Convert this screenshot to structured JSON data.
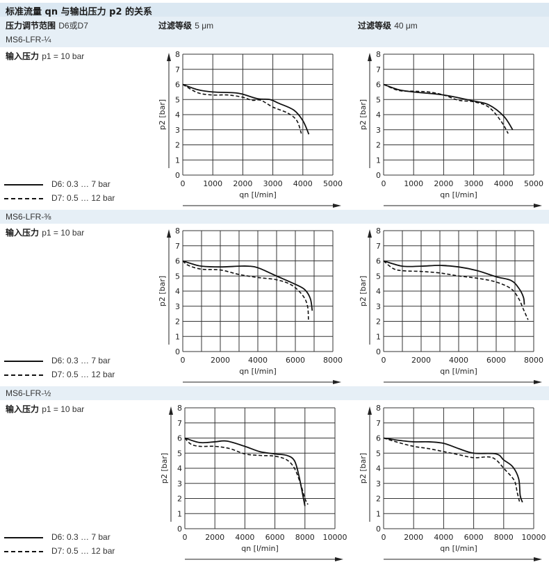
{
  "title": "标准流量 qn 与输出压力 p2 的关系",
  "header": {
    "range_label": "压力调节范围",
    "range_value": "D6或D7",
    "filter_label": "过滤等级",
    "filter_5": "5 μm",
    "filter_40": "过滤等级",
    "filter_40_value": "40 μm"
  },
  "input_label": "输入压力",
  "input_value": "p1 = 10 bar",
  "legend": {
    "d6": "D6: 0.3 … 7 bar",
    "d7": "D7: 0.5 … 12 bar"
  },
  "sections": [
    {
      "model": "MS6-LFR-¼"
    },
    {
      "model": "MS6-LFR-⅜"
    },
    {
      "model": "MS6-LFR-½"
    }
  ],
  "chart_data": [
    {
      "type": "line",
      "model": "MS6-LFR-¼",
      "filter": "5 μm",
      "xlabel": "qn [l/min]",
      "ylabel": "p2 [bar]",
      "xlim": [
        0,
        5000
      ],
      "ylim": [
        0,
        8
      ],
      "xgrid": 1000,
      "xticks": [
        0,
        1000,
        2000,
        3000,
        4000,
        5000
      ],
      "yticks": [
        0,
        1,
        2,
        3,
        4,
        5,
        6,
        7,
        8
      ],
      "grid": true,
      "series": [
        {
          "name": "D6: 0.3 … 7 bar",
          "style": "solid",
          "points": [
            [
              0,
              6
            ],
            [
              500,
              5.65
            ],
            [
              1000,
              5.5
            ],
            [
              1700,
              5.45
            ],
            [
              2000,
              5.35
            ],
            [
              2500,
              5.05
            ],
            [
              2900,
              5.0
            ],
            [
              3200,
              4.75
            ],
            [
              3700,
              4.3
            ],
            [
              4000,
              3.6
            ],
            [
              4200,
              2.7
            ]
          ]
        },
        {
          "name": "D7: 0.5 … 12 bar",
          "style": "dashed",
          "points": [
            [
              0,
              6
            ],
            [
              500,
              5.45
            ],
            [
              1000,
              5.3
            ],
            [
              1500,
              5.3
            ],
            [
              2000,
              5.15
            ],
            [
              2300,
              4.95
            ],
            [
              2600,
              4.95
            ],
            [
              3000,
              4.5
            ],
            [
              3500,
              4.1
            ],
            [
              3800,
              3.6
            ],
            [
              3950,
              2.75
            ]
          ]
        }
      ]
    },
    {
      "type": "line",
      "model": "MS6-LFR-¼",
      "filter": "40 μm",
      "xlabel": "qn [l/min]",
      "ylabel": "p2 [bar]",
      "xlim": [
        0,
        5000
      ],
      "ylim": [
        0,
        8
      ],
      "xgrid": 1000,
      "xticks": [
        0,
        1000,
        2000,
        3000,
        4000,
        5000
      ],
      "yticks": [
        0,
        1,
        2,
        3,
        4,
        5,
        6,
        7,
        8
      ],
      "grid": true,
      "series": [
        {
          "name": "D6: 0.3 … 7 bar",
          "style": "solid",
          "points": [
            [
              0,
              6
            ],
            [
              500,
              5.65
            ],
            [
              1000,
              5.5
            ],
            [
              2000,
              5.3
            ],
            [
              3000,
              4.9
            ],
            [
              3500,
              4.65
            ],
            [
              4000,
              3.9
            ],
            [
              4300,
              3.0
            ]
          ]
        },
        {
          "name": "D7: 0.5 … 12 bar",
          "style": "dashed",
          "points": [
            [
              0,
              6
            ],
            [
              500,
              5.6
            ],
            [
              1000,
              5.55
            ],
            [
              1500,
              5.5
            ],
            [
              2000,
              5.3
            ],
            [
              2500,
              4.95
            ],
            [
              3000,
              4.85
            ],
            [
              3500,
              4.5
            ],
            [
              3900,
              3.6
            ],
            [
              4150,
              2.75
            ]
          ]
        }
      ]
    },
    {
      "type": "line",
      "model": "MS6-LFR-⅜",
      "filter": "5 μm",
      "xlabel": "qn [l/min]",
      "ylabel": "p2 [bar]",
      "xlim": [
        0,
        8000
      ],
      "ylim": [
        0,
        8
      ],
      "xgrid": 1000,
      "xticks": [
        0,
        2000,
        4000,
        6000,
        8000
      ],
      "yticks": [
        0,
        1,
        2,
        3,
        4,
        5,
        6,
        7,
        8
      ],
      "grid": true,
      "series": [
        {
          "name": "D6: 0.3 … 7 bar",
          "style": "solid",
          "points": [
            [
              0,
              6
            ],
            [
              500,
              5.8
            ],
            [
              1000,
              5.65
            ],
            [
              2000,
              5.6
            ],
            [
              3000,
              5.65
            ],
            [
              3500,
              5.65
            ],
            [
              4000,
              5.55
            ],
            [
              5000,
              5.0
            ],
            [
              6000,
              4.45
            ],
            [
              6500,
              4.1
            ],
            [
              6800,
              3.5
            ],
            [
              6900,
              2.7
            ]
          ]
        },
        {
          "name": "D7: 0.5 … 12 bar",
          "style": "dashed",
          "points": [
            [
              0,
              6
            ],
            [
              300,
              5.7
            ],
            [
              1000,
              5.45
            ],
            [
              2000,
              5.4
            ],
            [
              3000,
              5.1
            ],
            [
              4000,
              4.9
            ],
            [
              5000,
              4.75
            ],
            [
              5800,
              4.4
            ],
            [
              6400,
              3.7
            ],
            [
              6650,
              3.0
            ],
            [
              6700,
              2.0
            ]
          ]
        }
      ]
    },
    {
      "type": "line",
      "model": "MS6-LFR-⅜",
      "filter": "40 μm",
      "xlabel": "qn [l/min]",
      "ylabel": "p2 [bar]",
      "xlim": [
        0,
        8000
      ],
      "ylim": [
        0,
        8
      ],
      "xgrid": 1000,
      "xticks": [
        0,
        2000,
        4000,
        6000,
        8000
      ],
      "yticks": [
        0,
        1,
        2,
        3,
        4,
        5,
        6,
        7,
        8
      ],
      "grid": true,
      "series": [
        {
          "name": "D6: 0.3 … 7 bar",
          "style": "solid",
          "points": [
            [
              0,
              6
            ],
            [
              1000,
              5.65
            ],
            [
              2000,
              5.65
            ],
            [
              3000,
              5.7
            ],
            [
              4000,
              5.6
            ],
            [
              5000,
              5.35
            ],
            [
              6000,
              4.95
            ],
            [
              6800,
              4.7
            ],
            [
              7200,
              4.2
            ],
            [
              7450,
              3.6
            ],
            [
              7500,
              3.1
            ]
          ]
        },
        {
          "name": "D7: 0.5 … 12 bar",
          "style": "dashed",
          "points": [
            [
              0,
              6
            ],
            [
              500,
              5.5
            ],
            [
              1000,
              5.35
            ],
            [
              2000,
              5.3
            ],
            [
              3000,
              5.2
            ],
            [
              4000,
              5.0
            ],
            [
              5000,
              4.85
            ],
            [
              6000,
              4.6
            ],
            [
              6800,
              4.15
            ],
            [
              7200,
              3.5
            ],
            [
              7450,
              2.8
            ],
            [
              7700,
              2.1
            ]
          ]
        }
      ]
    },
    {
      "type": "line",
      "model": "MS6-LFR-½",
      "filter": "5 μm",
      "xlabel": "qn [l/min]",
      "ylabel": "p2 [bar]",
      "xlim": [
        0,
        10000
      ],
      "ylim": [
        0,
        8
      ],
      "xgrid": 2000,
      "xticks": [
        0,
        2000,
        4000,
        6000,
        8000,
        10000
      ],
      "yticks": [
        0,
        1,
        2,
        3,
        4,
        5,
        6,
        7,
        8
      ],
      "grid": true,
      "series": [
        {
          "name": "D6: 0.3 … 7 bar",
          "style": "solid",
          "points": [
            [
              0,
              6
            ],
            [
              1000,
              5.7
            ],
            [
              2000,
              5.75
            ],
            [
              2800,
              5.8
            ],
            [
              4000,
              5.45
            ],
            [
              5000,
              5.1
            ],
            [
              6000,
              4.95
            ],
            [
              6800,
              4.85
            ],
            [
              7300,
              4.5
            ],
            [
              7600,
              3.5
            ],
            [
              7900,
              2.0
            ],
            [
              8000,
              1.5
            ]
          ]
        },
        {
          "name": "D7: 0.5 … 12 bar",
          "style": "dashed",
          "points": [
            [
              0,
              6
            ],
            [
              400,
              5.6
            ],
            [
              1000,
              5.45
            ],
            [
              2000,
              5.45
            ],
            [
              3000,
              5.3
            ],
            [
              4000,
              4.95
            ],
            [
              5000,
              4.85
            ],
            [
              6000,
              4.8
            ],
            [
              6800,
              4.55
            ],
            [
              7300,
              4.0
            ],
            [
              7700,
              3.0
            ],
            [
              8000,
              2.0
            ],
            [
              8200,
              1.6
            ]
          ]
        }
      ]
    },
    {
      "type": "line",
      "model": "MS6-LFR-½",
      "filter": "40 μm",
      "xlabel": "qn [l/min]",
      "ylabel": "p2 [bar]",
      "xlim": [
        0,
        10000
      ],
      "ylim": [
        0,
        8
      ],
      "xgrid": 2000,
      "xticks": [
        0,
        2000,
        4000,
        6000,
        8000,
        10000
      ],
      "yticks": [
        0,
        1,
        2,
        3,
        4,
        5,
        6,
        7,
        8
      ],
      "grid": true,
      "series": [
        {
          "name": "D6: 0.3 … 7 bar",
          "style": "solid",
          "points": [
            [
              0,
              6
            ],
            [
              1000,
              5.85
            ],
            [
              2000,
              5.75
            ],
            [
              3000,
              5.75
            ],
            [
              4000,
              5.65
            ],
            [
              5000,
              5.3
            ],
            [
              6000,
              5.0
            ],
            [
              7500,
              4.95
            ],
            [
              8000,
              4.55
            ],
            [
              8600,
              4.1
            ],
            [
              9000,
              3.3
            ],
            [
              9100,
              2.2
            ],
            [
              9250,
              1.75
            ]
          ]
        },
        {
          "name": "D7: 0.5 … 12 bar",
          "style": "dashed",
          "points": [
            [
              0,
              6
            ],
            [
              1000,
              5.7
            ],
            [
              2000,
              5.45
            ],
            [
              3000,
              5.3
            ],
            [
              4000,
              5.1
            ],
            [
              5000,
              4.9
            ],
            [
              6000,
              4.7
            ],
            [
              7000,
              4.75
            ],
            [
              7500,
              4.55
            ],
            [
              8000,
              4.0
            ],
            [
              8700,
              3.2
            ],
            [
              8900,
              2.4
            ],
            [
              9050,
              1.8
            ]
          ]
        }
      ]
    }
  ]
}
